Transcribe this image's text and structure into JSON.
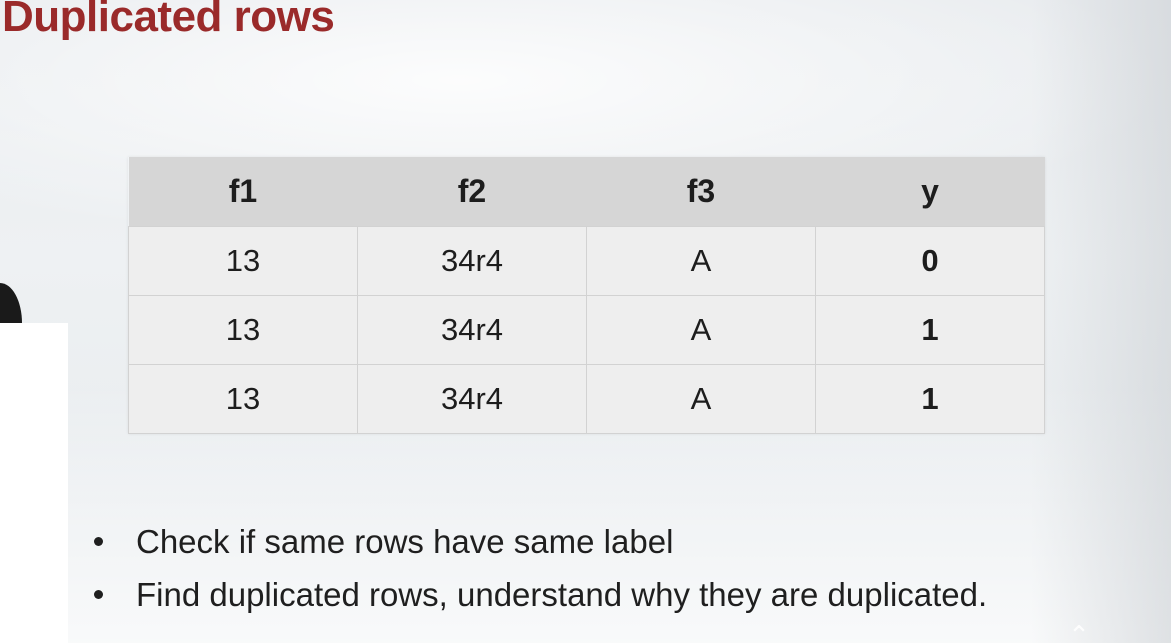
{
  "slide": {
    "title": "Duplicated rows"
  },
  "table": {
    "headers": [
      "f1",
      "f2",
      "f3",
      "y"
    ],
    "rows": [
      [
        "13",
        "34r4",
        "A",
        "0"
      ],
      [
        "13",
        "34r4",
        "A",
        "1"
      ],
      [
        "13",
        "34r4",
        "A",
        "1"
      ]
    ]
  },
  "bullets": [
    "Check if same rows have same label",
    "Find duplicated rows, understand why they are duplicated."
  ],
  "colors": {
    "title": "#9a2a2a",
    "header_bg": "#d6d6d6",
    "cell_bg": "#eeeeee"
  },
  "icons": {
    "corner": "chevron-up-icon"
  }
}
